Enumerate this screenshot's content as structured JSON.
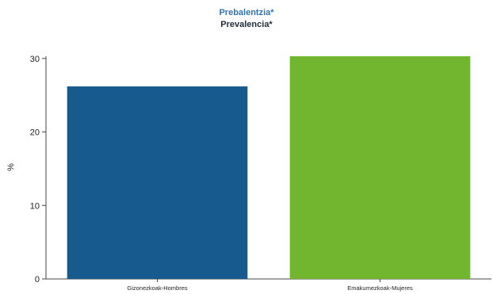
{
  "chart_data": {
    "type": "bar",
    "title": "Prebalentzia*",
    "subtitle": "Prevalencia*",
    "categories": [
      "Gizonezkoak-Hombres",
      "Emakumezkoak-Mujeres"
    ],
    "values": [
      26.2,
      30.3
    ],
    "ylabel": "%",
    "xlabel": "",
    "ylim": [
      0,
      30.3
    ],
    "yticks": [
      0,
      10,
      20,
      30
    ],
    "grid": false,
    "colors": [
      "#165a8e",
      "#72b52f"
    ],
    "title_colors": [
      "#2e75b6",
      "#1f2d3a"
    ]
  }
}
